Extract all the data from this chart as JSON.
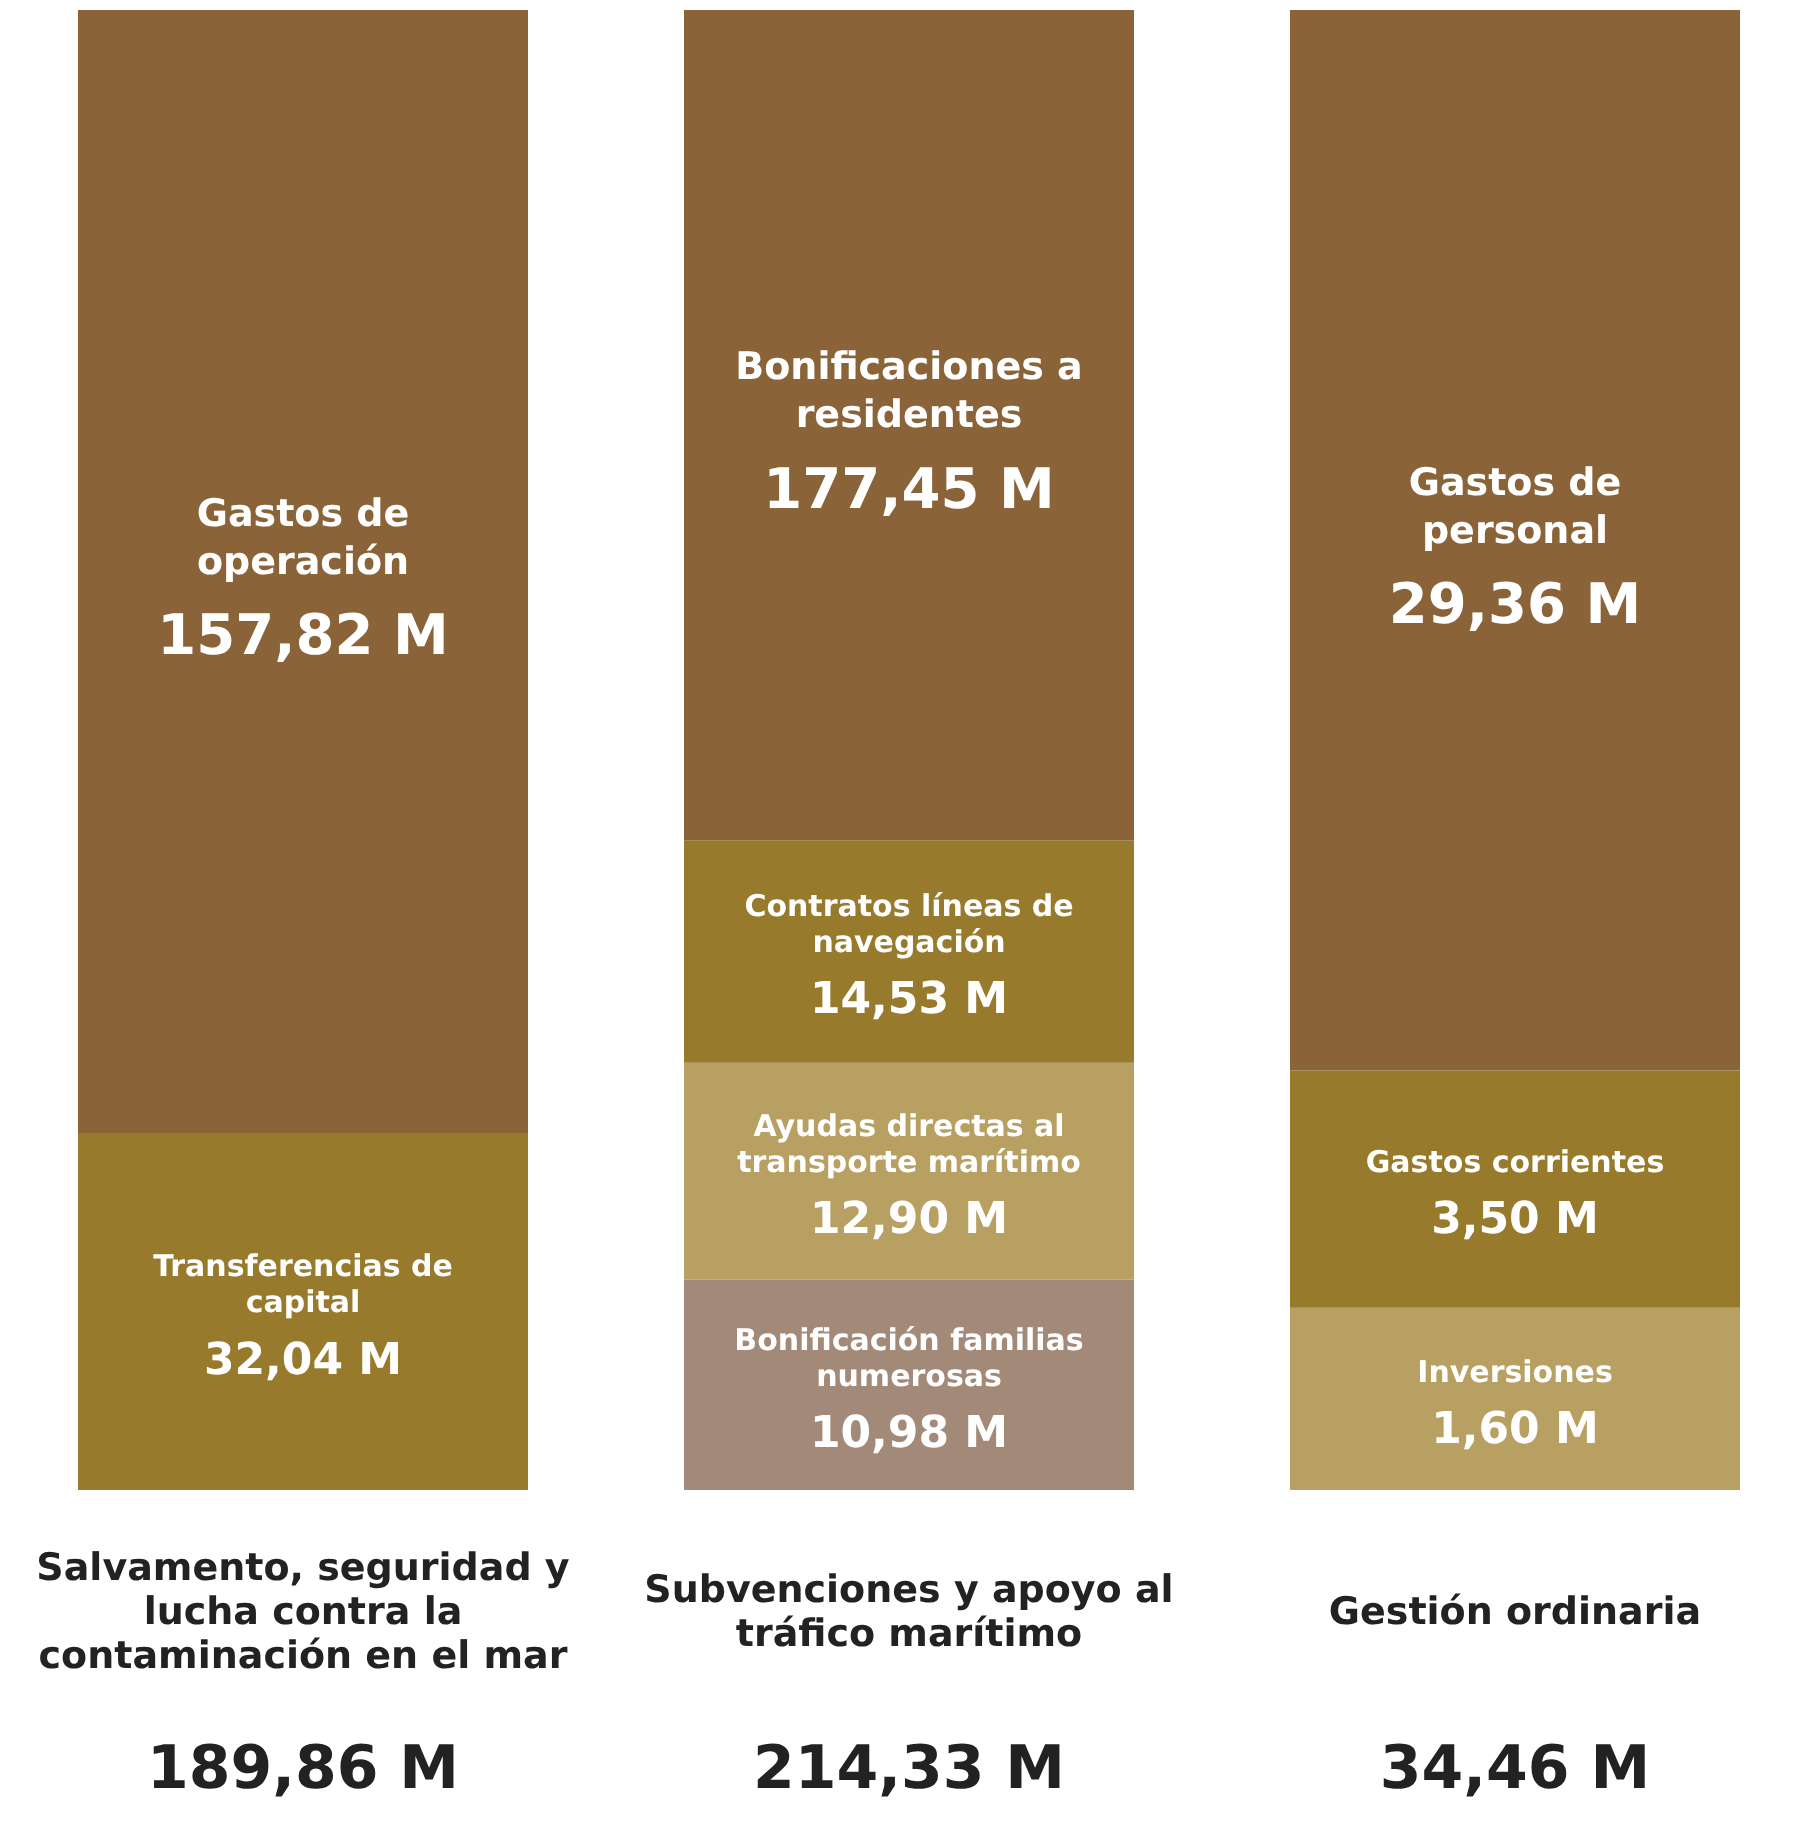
{
  "chart_data": [
    {
      "type": "other",
      "categories": [
        "Salvamento, seguridad y lucha contra la contaminación en el mar"
      ],
      "annotations": [
        "189,86 M"
      ],
      "series": [
        {
          "name": "Transferencias de capital",
          "color": "#977a2b",
          "values": [
            32.04
          ],
          "value_labels": [
            "32,04 M"
          ]
        },
        {
          "name": "Gastos de operación",
          "color": "#8a6438",
          "values": [
            157.82
          ],
          "value_labels": [
            "157,82 M"
          ]
        }
      ]
    },
    {
      "type": "other",
      "categories": [
        "Subvenciones y apoyo al tráfico marítimo"
      ],
      "annotations": [
        "214,33 M"
      ],
      "series": [
        {
          "name": "Bonificación familias numerosas",
          "color": "#a38a78",
          "values": [
            10.98
          ],
          "value_labels": [
            "10,98 M"
          ]
        },
        {
          "name": "Ayudas directas al transporte marítimo",
          "color": "#b8a062",
          "values": [
            12.9
          ],
          "value_labels": [
            "12,90 M"
          ]
        },
        {
          "name": "Contratos líneas de navegación",
          "color": "#977a2b",
          "values": [
            14.53
          ],
          "value_labels": [
            "14,53 M"
          ]
        },
        {
          "name": "Bonificaciones a residentes",
          "color": "#8a6438",
          "values": [
            177.45
          ],
          "value_labels": [
            "177,45 M"
          ]
        }
      ]
    },
    {
      "type": "other",
      "categories": [
        "Gestión ordinaria"
      ],
      "annotations": [
        "34,46 M"
      ],
      "series": [
        {
          "name": "Inversiones",
          "color": "#b8a062",
          "values": [
            1.6
          ],
          "value_labels": [
            "1,60 M"
          ]
        },
        {
          "name": "Gastos corrientes",
          "color": "#977a2b",
          "values": [
            3.5
          ],
          "value_labels": [
            "3,50 M"
          ]
        },
        {
          "name": "Gastos de personal",
          "color": "#8a6438",
          "values": [
            29.36
          ],
          "value_labels": [
            "29,36 M"
          ]
        }
      ]
    }
  ]
}
